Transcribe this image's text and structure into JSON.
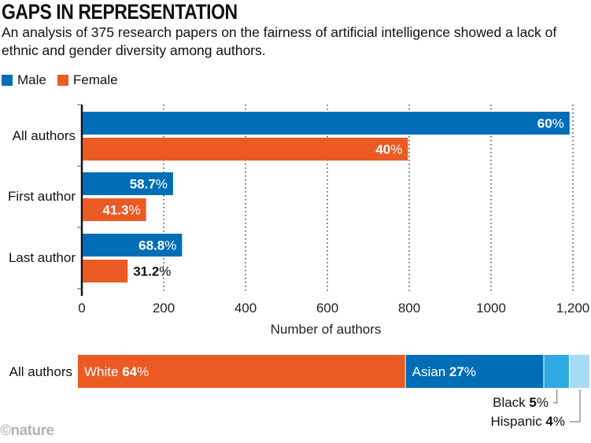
{
  "colors": {
    "male": "#006eb6",
    "female": "#ec5a24",
    "white": "#ec5a24",
    "asian": "#006eb6",
    "black": "#2ea9e2",
    "hispanic": "#a6dbf6"
  },
  "logo": "©nature",
  "chart_data": [
    {
      "type": "bar",
      "orientation": "horizontal",
      "title": "GAPS IN REPRESENTATION",
      "subtitle": "An analysis of 375 research papers on the fairness of artificial intelligence showed a lack of ethnic and gender diversity among authors.",
      "legend": [
        {
          "name": "Male",
          "key": "male"
        },
        {
          "name": "Female",
          "key": "female"
        }
      ],
      "legend_position": "top-left",
      "categories": [
        "All authors",
        "First author",
        "Last author"
      ],
      "series": [
        {
          "name": "Male",
          "key": "male",
          "values": [
            1190,
            221,
            243
          ],
          "labels": [
            "60%",
            "58.7%",
            "68.8%"
          ],
          "label_nums": [
            "60",
            "58.7",
            "68.8"
          ]
        },
        {
          "name": "Female",
          "key": "female",
          "values": [
            795,
            155,
            110
          ],
          "labels": [
            "40%",
            "41.3%",
            "31.2%"
          ],
          "label_nums": [
            "40",
            "41.3",
            "31.2"
          ]
        }
      ],
      "xlabel": "Number of authors",
      "xlim": [
        0,
        1200
      ],
      "xticks": [
        0,
        200,
        400,
        600,
        800,
        1000,
        1200
      ],
      "xtick_labels": [
        "0",
        "200",
        "400",
        "600",
        "800",
        "1000",
        "1,200"
      ],
      "grid": "vertical dotted"
    },
    {
      "type": "bar",
      "stacked": true,
      "category": "All authors",
      "segments": [
        {
          "name": "White",
          "value": 64,
          "key": "white",
          "num": "64"
        },
        {
          "name": "Asian",
          "value": 27,
          "key": "asian",
          "num": "27"
        },
        {
          "name": "Black",
          "value": 5,
          "key": "black",
          "num": "5"
        },
        {
          "name": "Hispanic",
          "value": 4,
          "key": "hispanic",
          "num": "4"
        }
      ]
    }
  ]
}
